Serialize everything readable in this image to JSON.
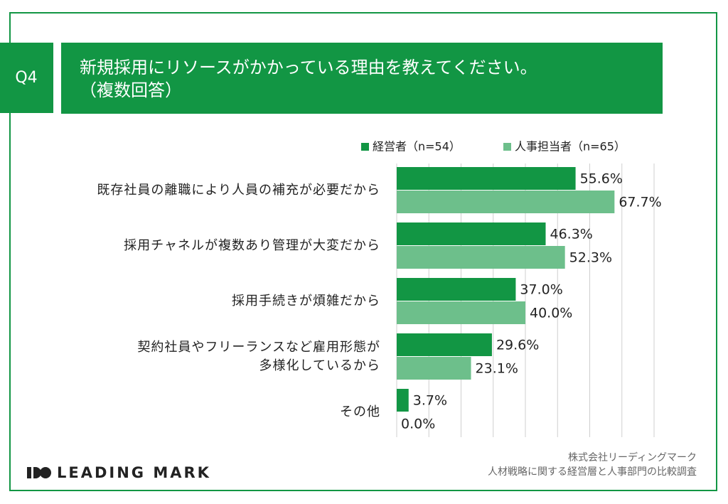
{
  "question": "Q4",
  "chart_data": {
    "type": "bar",
    "title": "新規採用にリソースがかかっている理由を教えてください。",
    "subtitle": "（複数回答）",
    "orientation": "horizontal",
    "categories": [
      "既存社員の離職により人員の補充が必要だから",
      "採用チャネルが複数あり管理が大変だから",
      "採用手続きが煩雑だから",
      "契約社員やフリーランスなど雇用形態が\n多様化しているから",
      "その他"
    ],
    "series": [
      {
        "name": "経営者（n=54）",
        "color": "#129644",
        "values": [
          55.6,
          46.3,
          37.0,
          29.6,
          3.7
        ],
        "value_labels": [
          "55.6%",
          "46.3%",
          "37.0%",
          "29.6%",
          "3.7%"
        ]
      },
      {
        "name": "人事担当者（n=65）",
        "color": "#6dbf8b",
        "values": [
          67.7,
          52.3,
          40.0,
          23.1,
          0.0
        ],
        "value_labels": [
          "67.7%",
          "52.3%",
          "40.0%",
          "23.1%",
          "0.0%"
        ]
      }
    ],
    "xlim": [
      0,
      80
    ],
    "xticks": [
      0,
      10,
      20,
      30,
      40,
      50,
      60,
      70,
      80
    ],
    "grid": true
  },
  "footer": {
    "logo": "LEADING MARK",
    "company": "株式会社リーディングマーク",
    "source": "人材戦略に関する経営層と人事部門の比較調査"
  }
}
